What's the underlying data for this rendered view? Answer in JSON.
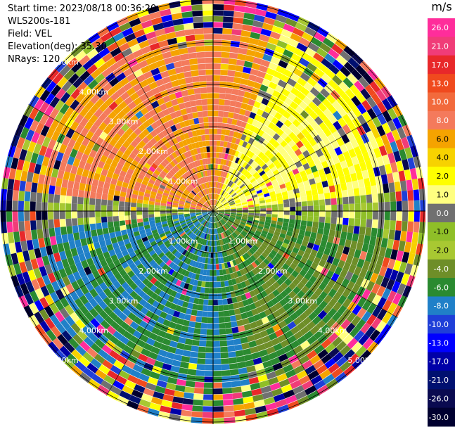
{
  "header": {
    "start_time": "Start time: 2023/08/18 00:36:20",
    "instrument": "WLS200s-181",
    "field": "Field: VEL",
    "elevation": "Elevation(deg): 35.30",
    "nrays": "NRays: 120"
  },
  "colorbar": {
    "unit": "m/s",
    "labels": [
      "26.0",
      "21.0",
      "17.0",
      "13.0",
      "10.0",
      "8.0",
      "6.0",
      "4.0",
      "2.0",
      "1.0",
      "0.0",
      "-1.0",
      "-2.0",
      "-4.0",
      "-6.0",
      "-8.0",
      "-10.0",
      "-13.0",
      "-17.0",
      "-21.0",
      "-26.0",
      "-30.0"
    ],
    "colors": [
      "#ff2d9b",
      "#f03c78",
      "#e8282a",
      "#f04a1e",
      "#f26a3c",
      "#f47a5c",
      "#f5a300",
      "#f7d200",
      "#ffff00",
      "#ffff80",
      "#707070",
      "#8fbf28",
      "#a8c832",
      "#6e8e28",
      "#2a8a30",
      "#2080c8",
      "#1f3fd8",
      "#0000ff",
      "#0000a8",
      "#001070",
      "#0a0a50",
      "#000030"
    ]
  },
  "chart_data": {
    "type": "heatmap",
    "projection": "polar (PPI)",
    "field": "VEL",
    "units": "m/s",
    "nrays": 120,
    "range_rings_km": [
      1.0,
      2.0,
      3.0,
      4.0,
      5.0
    ],
    "ring_labels": [
      "1.00km",
      "2.00km",
      "3.00km",
      "4.00km",
      "5.00km"
    ],
    "color_levels": [
      26.0,
      21.0,
      17.0,
      13.0,
      10.0,
      8.0,
      6.0,
      4.0,
      2.0,
      1.0,
      0.0,
      -1.0,
      -2.0,
      -4.0,
      -6.0,
      -8.0,
      -10.0,
      -13.0,
      -17.0,
      -21.0,
      -26.0,
      -30.0
    ],
    "pattern": {
      "north_sector_m_per_s": 8.0,
      "northeast_sector_m_per_s": 2.0,
      "south_sector_m_per_s": -6.0,
      "near_horizon_band_m_per_s": 0.0,
      "outer_range_km_noisy": 4.2
    }
  }
}
